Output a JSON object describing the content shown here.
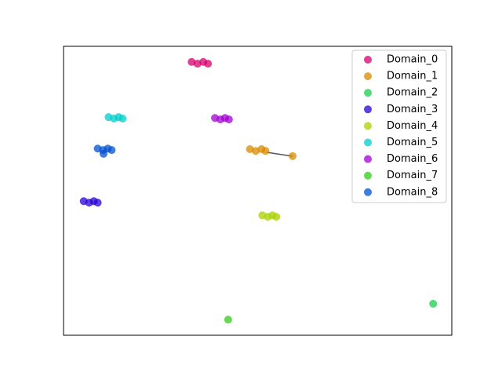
{
  "chart_data": {
    "type": "scatter",
    "xlim": [
      0,
      100
    ],
    "ylim": [
      0,
      100
    ],
    "legend": "upper right",
    "series": [
      {
        "name": "Domain_0",
        "color": "#d6006e",
        "x": [
          33,
          34.5,
          36,
          37.2
        ],
        "y": [
          94.6,
          94,
          94.6,
          94
        ]
      },
      {
        "name": "Domain_1",
        "color": "#d98a00",
        "x": [
          48,
          49.5,
          51,
          52,
          59
        ],
        "y": [
          64.4,
          63.8,
          64.4,
          63.8,
          62
        ]
      },
      {
        "name": "Domain_2",
        "color": "#1ecc50",
        "x": [
          95.2
        ],
        "y": [
          10.9
        ]
      },
      {
        "name": "Domain_3",
        "color": "#2a00d6",
        "x": [
          5.2,
          6.6,
          7.8,
          8.8
        ],
        "y": [
          46.4,
          45.9,
          46.4,
          45.9
        ]
      },
      {
        "name": "Domain_4",
        "color": "#a8d000",
        "x": [
          51.2,
          52.6,
          53.8,
          54.8
        ],
        "y": [
          41.5,
          41,
          41.5,
          41
        ]
      },
      {
        "name": "Domain_5",
        "color": "#00cccc",
        "x": [
          11.6,
          13,
          14.2,
          15.2
        ],
        "y": [
          75.5,
          75,
          75.5,
          75
        ]
      },
      {
        "name": "Domain_6",
        "color": "#a000d0",
        "x": [
          39,
          40.4,
          41.6,
          42.6
        ],
        "y": [
          75.2,
          74.7,
          75.2,
          74.7
        ]
      },
      {
        "name": "Domain_7",
        "color": "#33cc1a",
        "x": [
          42.4
        ],
        "y": [
          5.4
        ]
      },
      {
        "name": "Domain_8",
        "color": "#0050d0",
        "x": [
          8.8,
          10.2,
          11.4,
          12.4,
          10.3
        ],
        "y": [
          64.6,
          64.1,
          64.6,
          64.1,
          62.8
        ]
      }
    ]
  }
}
